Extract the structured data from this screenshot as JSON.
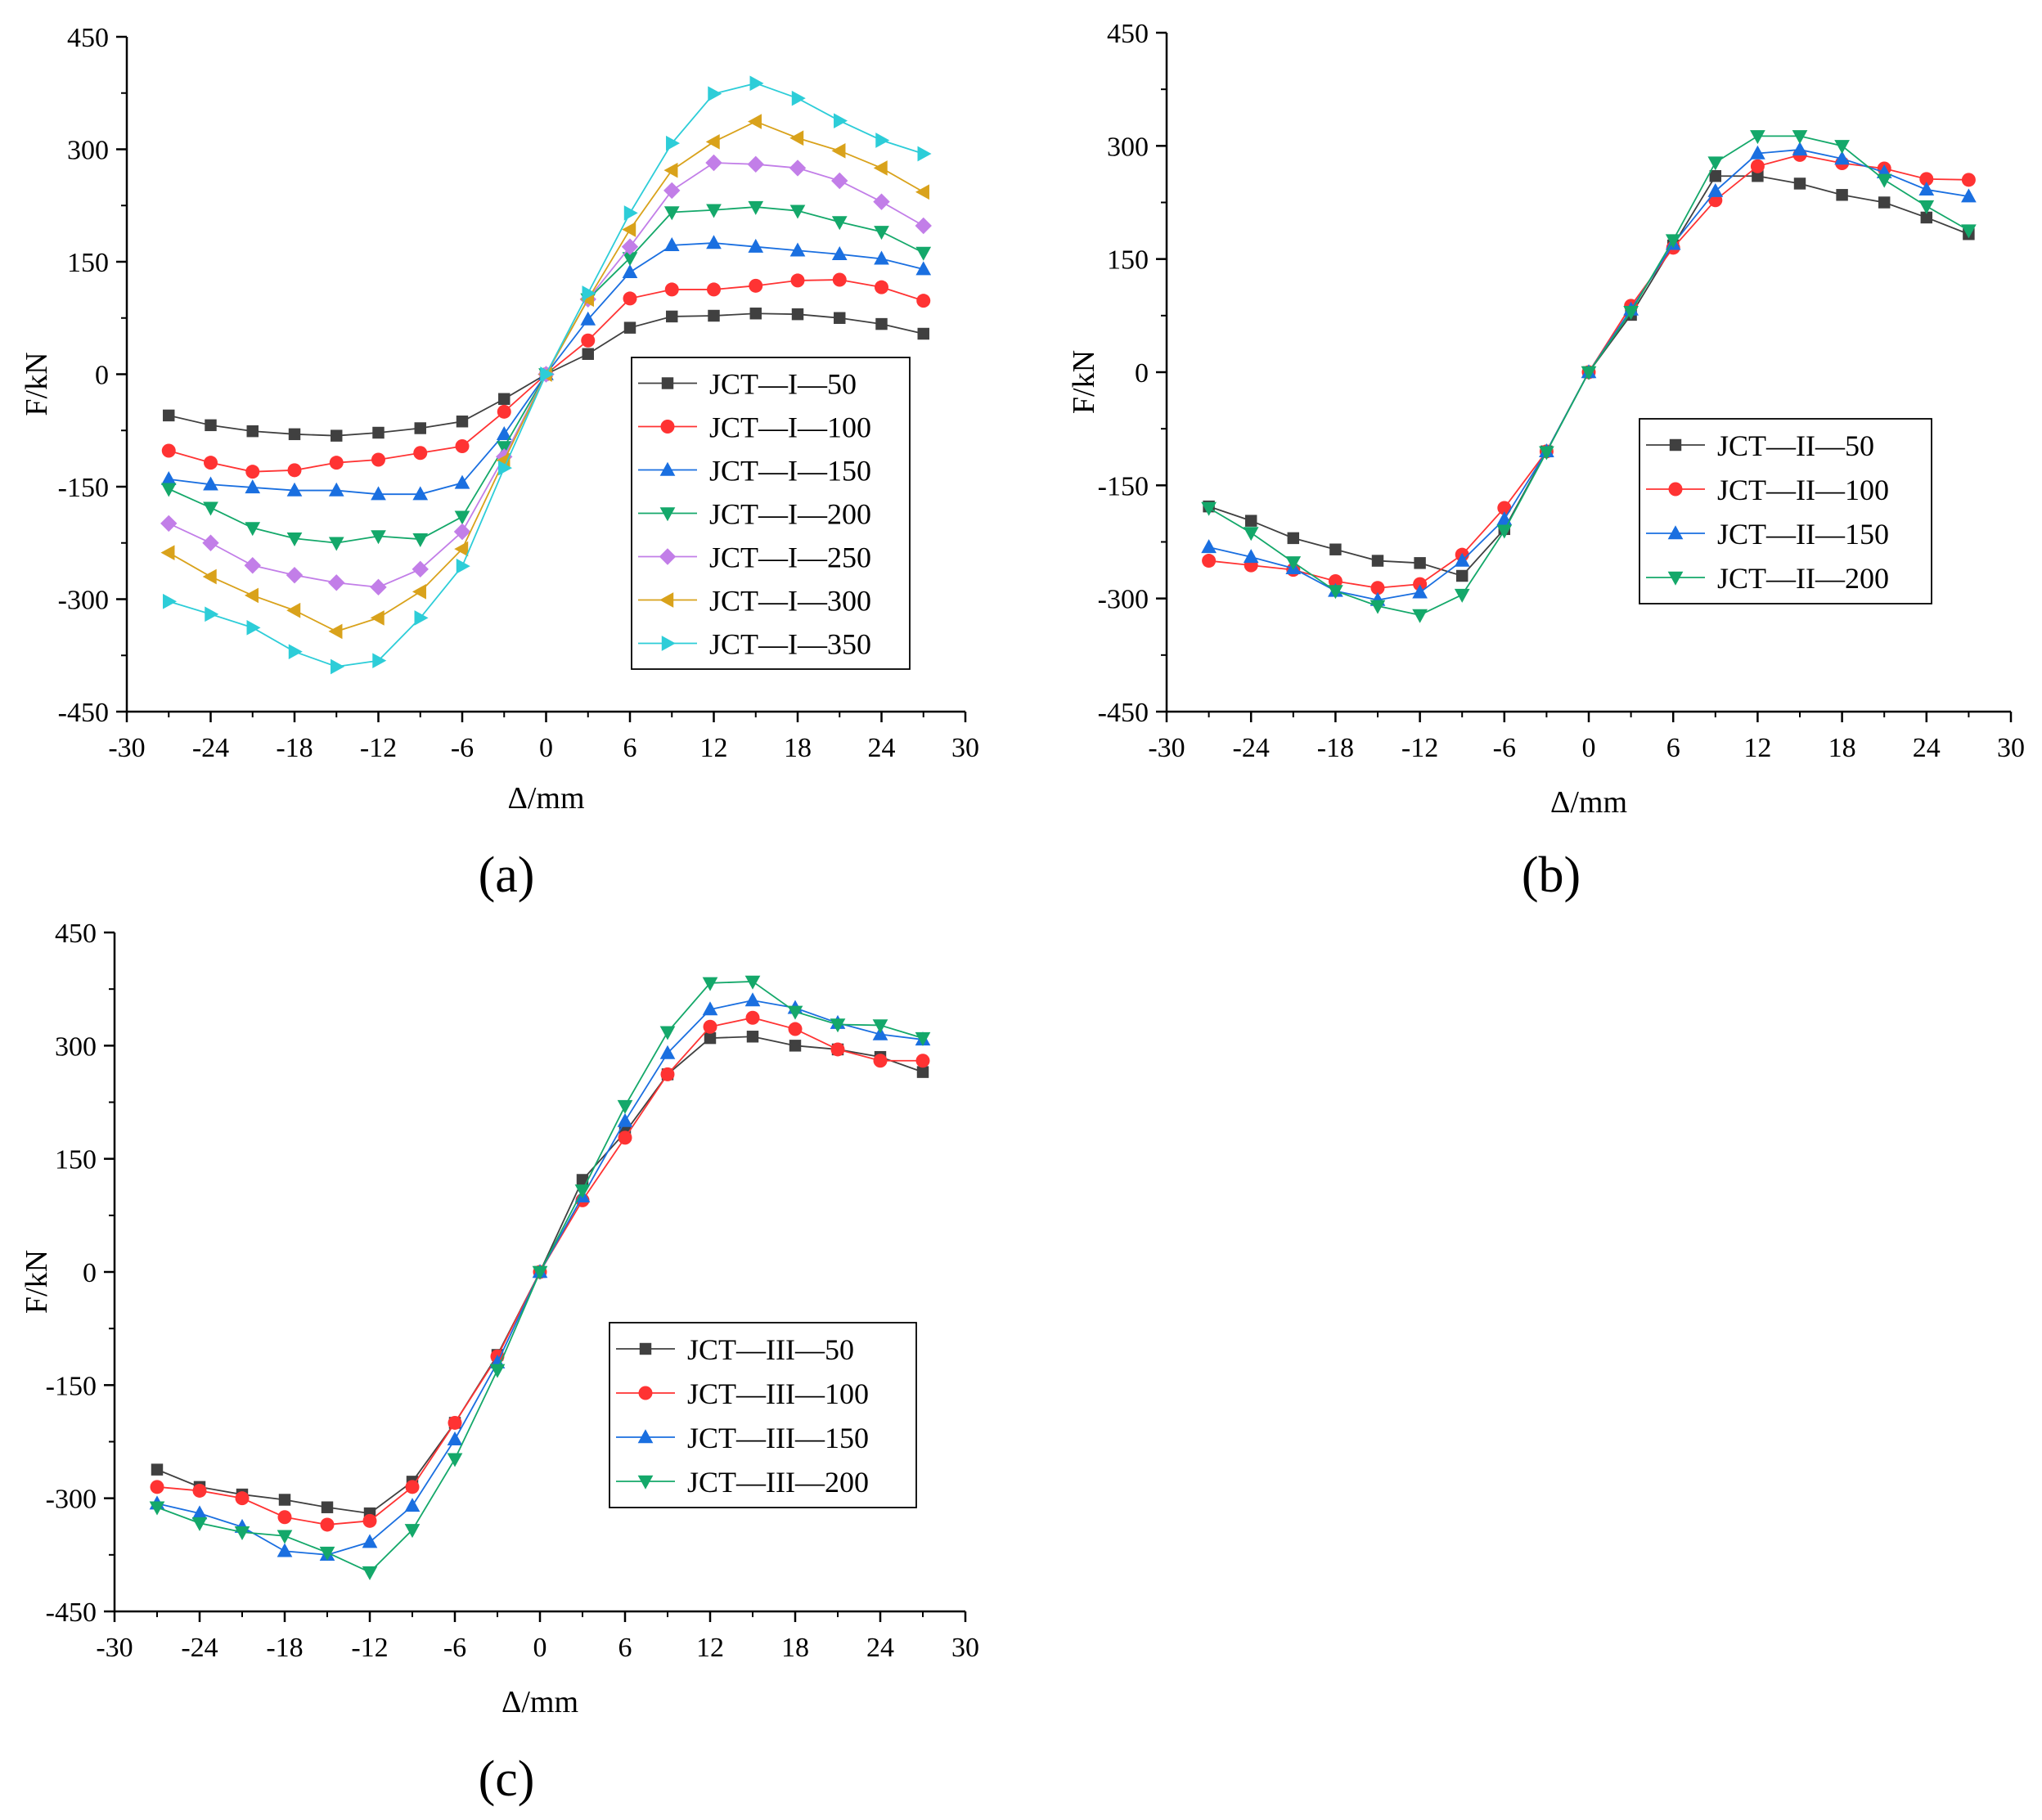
{
  "figure": {
    "panel_labels": [
      "(a)",
      "(b)",
      "(c)"
    ]
  },
  "chart_data": [
    {
      "type": "line",
      "panel": "(a)",
      "title": "",
      "xlabel": "Δ/mm",
      "ylabel": "F/kN",
      "xlim": [
        -30,
        30
      ],
      "ylim": [
        -450,
        450
      ],
      "xticks": [
        -30,
        -24,
        -18,
        -12,
        -6,
        0,
        6,
        12,
        18,
        24,
        30
      ],
      "yticks": [
        -450,
        -300,
        -150,
        0,
        150,
        300,
        450
      ],
      "legend_position": "right",
      "x": [
        -27,
        -24,
        -21,
        -18,
        -15,
        -12,
        -9,
        -6,
        -3,
        0,
        3,
        6,
        9,
        12,
        15,
        18,
        21,
        24,
        27
      ],
      "series": [
        {
          "name": "JCT—I—50",
          "color": "#404040",
          "marker": "square",
          "values": [
            -55,
            -68,
            -76,
            -80,
            -82,
            -78,
            -72,
            -63,
            -33,
            0,
            27,
            62,
            77,
            78,
            81,
            80,
            75,
            67,
            54
          ]
        },
        {
          "name": "JCT—I—100",
          "color": "#ff3333",
          "marker": "circle",
          "values": [
            -102,
            -118,
            -130,
            -128,
            -118,
            -114,
            -105,
            -96,
            -50,
            0,
            45,
            101,
            113,
            113,
            118,
            125,
            126,
            116,
            98
          ]
        },
        {
          "name": "JCT—I—150",
          "color": "#1a6fe0",
          "marker": "triangle-up",
          "values": [
            -140,
            -147,
            -151,
            -155,
            -155,
            -160,
            -160,
            -145,
            -80,
            0,
            73,
            136,
            172,
            175,
            170,
            165,
            160,
            154,
            140
          ]
        },
        {
          "name": "JCT—I—200",
          "color": "#14a86a",
          "marker": "triangle-down",
          "values": [
            -153,
            -178,
            -205,
            -219,
            -225,
            -216,
            -220,
            -190,
            -97,
            0,
            100,
            155,
            216,
            219,
            223,
            218,
            203,
            190,
            162
          ]
        },
        {
          "name": "JCT—I—250",
          "color": "#c27ee8",
          "marker": "diamond",
          "values": [
            -199,
            -225,
            -255,
            -268,
            -278,
            -284,
            -260,
            -210,
            -110,
            0,
            100,
            170,
            245,
            282,
            280,
            275,
            258,
            230,
            198
          ]
        },
        {
          "name": "JCT—I—300",
          "color": "#d9a21b",
          "marker": "triangle-left",
          "values": [
            -238,
            -270,
            -295,
            -315,
            -343,
            -325,
            -290,
            -233,
            -115,
            0,
            100,
            193,
            272,
            310,
            337,
            315,
            298,
            275,
            243
          ]
        },
        {
          "name": "JCT—I—350",
          "color": "#2dcdd8",
          "marker": "triangle-right",
          "values": [
            -303,
            -320,
            -338,
            -370,
            -390,
            -382,
            -325,
            -256,
            -125,
            0,
            108,
            215,
            308,
            374,
            388,
            368,
            338,
            312,
            294
          ]
        }
      ]
    },
    {
      "type": "line",
      "panel": "(b)",
      "title": "",
      "xlabel": "Δ/mm",
      "ylabel": "F/kN",
      "xlim": [
        -30,
        30
      ],
      "ylim": [
        -450,
        450
      ],
      "xticks": [
        -30,
        -24,
        -18,
        -12,
        -6,
        0,
        6,
        12,
        18,
        24,
        30
      ],
      "yticks": [
        -450,
        -300,
        -150,
        0,
        150,
        300,
        450
      ],
      "legend_position": "center-right",
      "x": [
        -27,
        -24,
        -21,
        -18,
        -15,
        -12,
        -9,
        -6,
        -3,
        0,
        3,
        6,
        9,
        12,
        15,
        18,
        21,
        24,
        27
      ],
      "series": [
        {
          "name": "JCT—II—50",
          "color": "#404040",
          "marker": "square",
          "values": [
            -178,
            -197,
            -220,
            -235,
            -250,
            -253,
            -270,
            -208,
            -105,
            0,
            76,
            168,
            260,
            260,
            250,
            235,
            225,
            205,
            183
          ]
        },
        {
          "name": "JCT—II—100",
          "color": "#ff3333",
          "marker": "circle",
          "values": [
            -250,
            -256,
            -262,
            -277,
            -286,
            -281,
            -242,
            -180,
            -105,
            0,
            88,
            165,
            228,
            273,
            288,
            277,
            270,
            256,
            255
          ]
        },
        {
          "name": "JCT—II—150",
          "color": "#1a6fe0",
          "marker": "triangle-up",
          "values": [
            -232,
            -245,
            -260,
            -290,
            -302,
            -292,
            -250,
            -195,
            -105,
            0,
            83,
            170,
            240,
            290,
            295,
            283,
            265,
            242,
            233
          ]
        },
        {
          "name": "JCT—II—200",
          "color": "#14a86a",
          "marker": "triangle-down",
          "values": [
            -180,
            -213,
            -252,
            -290,
            -310,
            -322,
            -295,
            -210,
            -106,
            0,
            80,
            175,
            278,
            313,
            313,
            300,
            255,
            220,
            188
          ]
        }
      ]
    },
    {
      "type": "line",
      "panel": "(c)",
      "title": "",
      "xlabel": "Δ/mm",
      "ylabel": "F/kN",
      "xlim": [
        -30,
        30
      ],
      "ylim": [
        -450,
        450
      ],
      "xticks": [
        -30,
        -24,
        -18,
        -12,
        -6,
        0,
        6,
        12,
        18,
        24,
        30
      ],
      "yticks": [
        -450,
        -300,
        -150,
        0,
        150,
        300,
        450
      ],
      "legend_position": "bottom-right",
      "x": [
        -27,
        -24,
        -21,
        -18,
        -15,
        -12,
        -9,
        -6,
        -3,
        0,
        3,
        6,
        9,
        12,
        15,
        18,
        21,
        24,
        27
      ],
      "series": [
        {
          "name": "JCT—III—50",
          "color": "#404040",
          "marker": "square",
          "values": [
            -262,
            -285,
            -295,
            -302,
            -312,
            -320,
            -278,
            -200,
            -110,
            0,
            122,
            185,
            262,
            310,
            312,
            300,
            295,
            285,
            265
          ]
        },
        {
          "name": "JCT—III—100",
          "color": "#ff3333",
          "marker": "circle",
          "values": [
            -285,
            -290,
            -300,
            -325,
            -335,
            -330,
            -285,
            -200,
            -112,
            0,
            95,
            178,
            262,
            325,
            337,
            322,
            295,
            280,
            280
          ]
        },
        {
          "name": "JCT—III—150",
          "color": "#1a6fe0",
          "marker": "triangle-up",
          "values": [
            -307,
            -320,
            -338,
            -370,
            -375,
            -358,
            -310,
            -222,
            -120,
            0,
            100,
            200,
            290,
            348,
            360,
            350,
            330,
            315,
            308
          ]
        },
        {
          "name": "JCT—III—200",
          "color": "#14a86a",
          "marker": "triangle-down",
          "values": [
            -312,
            -333,
            -345,
            -350,
            -372,
            -398,
            -342,
            -248,
            -130,
            0,
            108,
            220,
            318,
            383,
            385,
            345,
            328,
            327,
            310
          ]
        }
      ]
    }
  ]
}
